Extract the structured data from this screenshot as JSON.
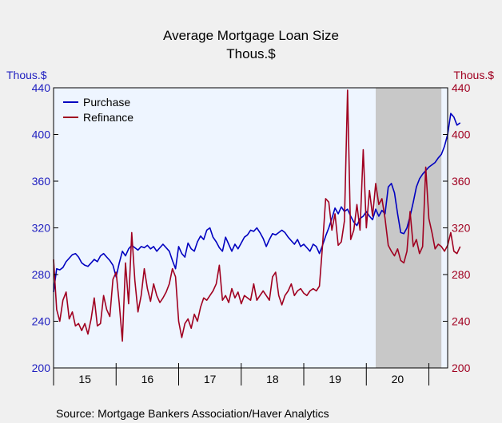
{
  "chart_data": {
    "type": "line",
    "title": "Average Mortgage Loan Size",
    "subtitle": "Thous.$",
    "left_axis_unit": "Thous.$",
    "right_axis_unit": "Thous.$",
    "ylim": [
      200,
      440
    ],
    "y_ticks": [
      200,
      240,
      280,
      320,
      360,
      400,
      440
    ],
    "xlim": [
      2015.0,
      2021.3
    ],
    "x_tick_labels": [
      "15",
      "16",
      "17",
      "18",
      "19",
      "20"
    ],
    "grid": false,
    "legend_position": "top-left",
    "shaded_region": {
      "start": 2020.15,
      "end": 2021.2
    },
    "series": [
      {
        "name": "Purchase",
        "color": "#0000c0",
        "points": [
          [
            2015.0,
            265
          ],
          [
            2015.05,
            285
          ],
          [
            2015.1,
            284
          ],
          [
            2015.15,
            286
          ],
          [
            2015.2,
            291
          ],
          [
            2015.25,
            294
          ],
          [
            2015.3,
            297
          ],
          [
            2015.35,
            298
          ],
          [
            2015.4,
            295
          ],
          [
            2015.45,
            290
          ],
          [
            2015.5,
            288
          ],
          [
            2015.55,
            287
          ],
          [
            2015.6,
            290
          ],
          [
            2015.65,
            293
          ],
          [
            2015.7,
            291
          ],
          [
            2015.75,
            296
          ],
          [
            2015.8,
            298
          ],
          [
            2015.85,
            295
          ],
          [
            2015.9,
            292
          ],
          [
            2015.95,
            288
          ],
          [
            2016.0,
            278
          ],
          [
            2016.05,
            290
          ],
          [
            2016.1,
            300
          ],
          [
            2016.15,
            296
          ],
          [
            2016.2,
            302
          ],
          [
            2016.25,
            305
          ],
          [
            2016.3,
            303
          ],
          [
            2016.35,
            301
          ],
          [
            2016.4,
            304
          ],
          [
            2016.45,
            303
          ],
          [
            2016.5,
            305
          ],
          [
            2016.55,
            302
          ],
          [
            2016.6,
            304
          ],
          [
            2016.65,
            300
          ],
          [
            2016.7,
            303
          ],
          [
            2016.75,
            306
          ],
          [
            2016.8,
            303
          ],
          [
            2016.85,
            300
          ],
          [
            2016.9,
            292
          ],
          [
            2016.95,
            285
          ],
          [
            2017.0,
            304
          ],
          [
            2017.05,
            298
          ],
          [
            2017.1,
            295
          ],
          [
            2017.15,
            307
          ],
          [
            2017.2,
            302
          ],
          [
            2017.25,
            300
          ],
          [
            2017.3,
            308
          ],
          [
            2017.35,
            313
          ],
          [
            2017.4,
            310
          ],
          [
            2017.45,
            318
          ],
          [
            2017.5,
            320
          ],
          [
            2017.55,
            312
          ],
          [
            2017.6,
            308
          ],
          [
            2017.65,
            303
          ],
          [
            2017.7,
            300
          ],
          [
            2017.75,
            312
          ],
          [
            2017.8,
            306
          ],
          [
            2017.85,
            300
          ],
          [
            2017.9,
            306
          ],
          [
            2017.95,
            302
          ],
          [
            2018.0,
            307
          ],
          [
            2018.05,
            312
          ],
          [
            2018.1,
            314
          ],
          [
            2018.15,
            318
          ],
          [
            2018.2,
            317
          ],
          [
            2018.25,
            320
          ],
          [
            2018.3,
            316
          ],
          [
            2018.35,
            311
          ],
          [
            2018.4,
            304
          ],
          [
            2018.45,
            310
          ],
          [
            2018.5,
            315
          ],
          [
            2018.55,
            314
          ],
          [
            2018.6,
            316
          ],
          [
            2018.65,
            318
          ],
          [
            2018.7,
            316
          ],
          [
            2018.75,
            312
          ],
          [
            2018.8,
            309
          ],
          [
            2018.85,
            306
          ],
          [
            2018.9,
            310
          ],
          [
            2018.95,
            304
          ],
          [
            2019.0,
            306
          ],
          [
            2019.05,
            303
          ],
          [
            2019.1,
            300
          ],
          [
            2019.15,
            306
          ],
          [
            2019.2,
            304
          ],
          [
            2019.25,
            298
          ],
          [
            2019.3,
            305
          ],
          [
            2019.35,
            313
          ],
          [
            2019.4,
            320
          ],
          [
            2019.45,
            328
          ],
          [
            2019.5,
            337
          ],
          [
            2019.55,
            332
          ],
          [
            2019.6,
            338
          ],
          [
            2019.65,
            334
          ],
          [
            2019.7,
            336
          ],
          [
            2019.75,
            330
          ],
          [
            2019.8,
            325
          ],
          [
            2019.85,
            322
          ],
          [
            2019.9,
            328
          ],
          [
            2019.95,
            330
          ],
          [
            2020.0,
            334
          ],
          [
            2020.05,
            330
          ],
          [
            2020.1,
            327
          ],
          [
            2020.15,
            336
          ],
          [
            2020.2,
            330
          ],
          [
            2020.25,
            335
          ],
          [
            2020.3,
            332
          ],
          [
            2020.35,
            355
          ],
          [
            2020.4,
            358
          ],
          [
            2020.45,
            350
          ],
          [
            2020.5,
            332
          ],
          [
            2020.55,
            316
          ],
          [
            2020.6,
            315
          ],
          [
            2020.65,
            320
          ],
          [
            2020.7,
            330
          ],
          [
            2020.75,
            342
          ],
          [
            2020.8,
            355
          ],
          [
            2020.85,
            362
          ],
          [
            2020.9,
            366
          ],
          [
            2020.95,
            369
          ],
          [
            2021.0,
            372
          ],
          [
            2021.05,
            374
          ],
          [
            2021.1,
            376
          ],
          [
            2021.15,
            380
          ],
          [
            2021.2,
            383
          ],
          [
            2021.25,
            390
          ],
          [
            2021.3,
            400
          ],
          [
            2021.35,
            418
          ],
          [
            2021.4,
            415
          ],
          [
            2021.45,
            408
          ],
          [
            2021.5,
            410
          ]
        ]
      },
      {
        "name": "Refinance",
        "color": "#a00020",
        "points": [
          [
            2015.0,
            293
          ],
          [
            2015.05,
            250
          ],
          [
            2015.1,
            240
          ],
          [
            2015.15,
            258
          ],
          [
            2015.2,
            265
          ],
          [
            2015.25,
            242
          ],
          [
            2015.3,
            248
          ],
          [
            2015.35,
            236
          ],
          [
            2015.4,
            238
          ],
          [
            2015.45,
            232
          ],
          [
            2015.5,
            238
          ],
          [
            2015.55,
            229
          ],
          [
            2015.6,
            242
          ],
          [
            2015.65,
            260
          ],
          [
            2015.7,
            236
          ],
          [
            2015.75,
            238
          ],
          [
            2015.8,
            262
          ],
          [
            2015.85,
            250
          ],
          [
            2015.9,
            244
          ],
          [
            2015.95,
            276
          ],
          [
            2016.0,
            282
          ],
          [
            2016.05,
            255
          ],
          [
            2016.1,
            223
          ],
          [
            2016.15,
            290
          ],
          [
            2016.2,
            255
          ],
          [
            2016.25,
            316
          ],
          [
            2016.3,
            275
          ],
          [
            2016.35,
            248
          ],
          [
            2016.4,
            262
          ],
          [
            2016.45,
            285
          ],
          [
            2016.5,
            268
          ],
          [
            2016.55,
            257
          ],
          [
            2016.6,
            272
          ],
          [
            2016.65,
            262
          ],
          [
            2016.7,
            256
          ],
          [
            2016.75,
            260
          ],
          [
            2016.8,
            265
          ],
          [
            2016.85,
            272
          ],
          [
            2016.9,
            285
          ],
          [
            2016.95,
            278
          ],
          [
            2017.0,
            240
          ],
          [
            2017.05,
            226
          ],
          [
            2017.1,
            238
          ],
          [
            2017.15,
            242
          ],
          [
            2017.2,
            234
          ],
          [
            2017.25,
            246
          ],
          [
            2017.3,
            240
          ],
          [
            2017.35,
            252
          ],
          [
            2017.4,
            260
          ],
          [
            2017.45,
            258
          ],
          [
            2017.5,
            262
          ],
          [
            2017.55,
            266
          ],
          [
            2017.6,
            272
          ],
          [
            2017.65,
            288
          ],
          [
            2017.7,
            258
          ],
          [
            2017.75,
            262
          ],
          [
            2017.8,
            256
          ],
          [
            2017.85,
            268
          ],
          [
            2017.9,
            260
          ],
          [
            2017.95,
            265
          ],
          [
            2018.0,
            255
          ],
          [
            2018.05,
            262
          ],
          [
            2018.1,
            260
          ],
          [
            2018.15,
            258
          ],
          [
            2018.2,
            272
          ],
          [
            2018.25,
            258
          ],
          [
            2018.3,
            262
          ],
          [
            2018.35,
            266
          ],
          [
            2018.4,
            262
          ],
          [
            2018.45,
            258
          ],
          [
            2018.5,
            278
          ],
          [
            2018.55,
            282
          ],
          [
            2018.6,
            262
          ],
          [
            2018.65,
            254
          ],
          [
            2018.7,
            262
          ],
          [
            2018.75,
            266
          ],
          [
            2018.8,
            272
          ],
          [
            2018.85,
            262
          ],
          [
            2018.9,
            266
          ],
          [
            2018.95,
            268
          ],
          [
            2019.0,
            264
          ],
          [
            2019.05,
            262
          ],
          [
            2019.1,
            266
          ],
          [
            2019.15,
            268
          ],
          [
            2019.2,
            266
          ],
          [
            2019.25,
            270
          ],
          [
            2019.3,
            305
          ],
          [
            2019.35,
            345
          ],
          [
            2019.4,
            342
          ],
          [
            2019.45,
            318
          ],
          [
            2019.5,
            332
          ],
          [
            2019.55,
            305
          ],
          [
            2019.6,
            308
          ],
          [
            2019.65,
            326
          ],
          [
            2019.7,
            438
          ],
          [
            2019.75,
            310
          ],
          [
            2019.8,
            318
          ],
          [
            2019.85,
            340
          ],
          [
            2019.9,
            318
          ],
          [
            2019.95,
            387
          ],
          [
            2020.0,
            320
          ],
          [
            2020.05,
            352
          ],
          [
            2020.1,
            330
          ],
          [
            2020.15,
            358
          ],
          [
            2020.2,
            340
          ],
          [
            2020.25,
            345
          ],
          [
            2020.3,
            328
          ],
          [
            2020.35,
            305
          ],
          [
            2020.4,
            300
          ],
          [
            2020.45,
            296
          ],
          [
            2020.5,
            302
          ],
          [
            2020.55,
            292
          ],
          [
            2020.6,
            290
          ],
          [
            2020.65,
            300
          ],
          [
            2020.7,
            334
          ],
          [
            2020.75,
            304
          ],
          [
            2020.8,
            310
          ],
          [
            2020.85,
            298
          ],
          [
            2020.9,
            304
          ],
          [
            2020.95,
            372
          ],
          [
            2021.0,
            328
          ],
          [
            2021.05,
            316
          ],
          [
            2021.1,
            302
          ],
          [
            2021.15,
            306
          ],
          [
            2021.2,
            304
          ],
          [
            2021.25,
            300
          ],
          [
            2021.3,
            305
          ],
          [
            2021.35,
            316
          ],
          [
            2021.4,
            300
          ],
          [
            2021.45,
            298
          ],
          [
            2021.5,
            304
          ]
        ]
      }
    ],
    "source": "Source:  Mortgage Bankers Association/Haver Analytics"
  }
}
